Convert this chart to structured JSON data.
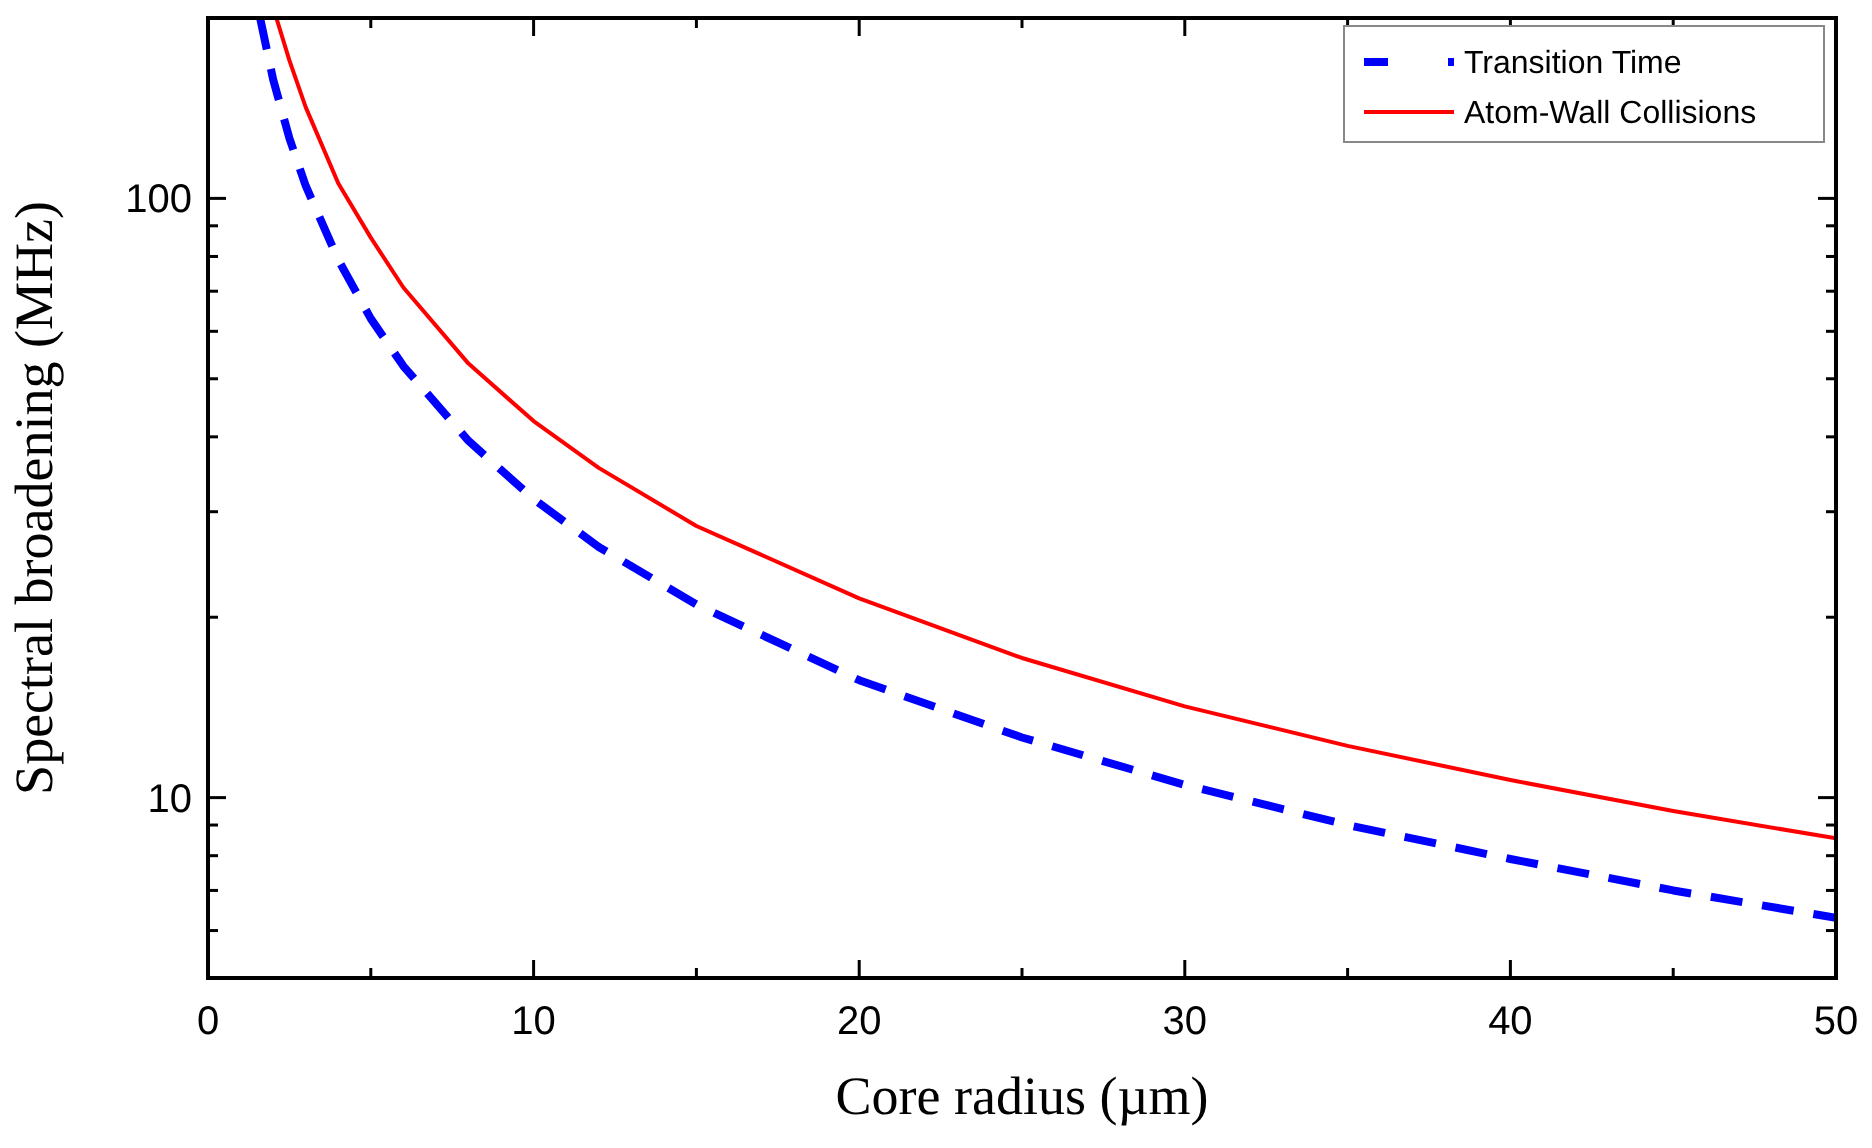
{
  "chart_data": {
    "type": "line",
    "xlabel": "Core radius (µm)",
    "ylabel": "Spectral broadening (MHz)",
    "log": "y",
    "xlim": [
      0,
      50
    ],
    "xticks": [
      0,
      {
        "value": 5,
        "label": null
      },
      10,
      {
        "value": 15,
        "label": null
      },
      20,
      {
        "value": 25,
        "label": null
      },
      30,
      {
        "value": 35,
        "label": null
      },
      40,
      {
        "value": 45,
        "label": null
      },
      50
    ],
    "ylim": [
      5,
      200
    ],
    "yticks": [
      {
        "value": 6,
        "label": null
      },
      {
        "value": 7,
        "label": null
      },
      {
        "value": 8,
        "label": null
      },
      {
        "value": 9,
        "label": null
      },
      10,
      {
        "value": 20,
        "label": null
      },
      {
        "value": 30,
        "label": null
      },
      {
        "value": 40,
        "label": null
      },
      {
        "value": 50,
        "label": null
      },
      {
        "value": 60,
        "label": null
      },
      {
        "value": 70,
        "label": null
      },
      {
        "value": 80,
        "label": null
      },
      {
        "value": 90,
        "label": null
      },
      100
    ],
    "grid": false,
    "legend": "top right",
    "series": [
      {
        "name": "Transition Time",
        "color": "#0000ff",
        "line_style": "dashed",
        "x": [
          1.6,
          2,
          2.5,
          3,
          4,
          5,
          6,
          8,
          10,
          12,
          15,
          20,
          25,
          30,
          35,
          40,
          45,
          50
        ],
        "values": [
          200,
          158,
          126,
          105,
          79,
          63,
          52.5,
          39.4,
          31.5,
          26.2,
          21,
          15.7,
          12.6,
          10.5,
          9,
          7.9,
          7,
          6.3
        ]
      },
      {
        "name": "Atom-Wall Collisions",
        "color": "#ff0000",
        "line_style": "solid",
        "x": [
          2.1,
          2.5,
          3,
          4,
          5,
          6,
          8,
          10,
          12,
          15,
          20,
          25,
          30,
          35,
          40,
          45,
          50
        ],
        "values": [
          200,
          170,
          142,
          106,
          86,
          71,
          53,
          42.5,
          35.5,
          28.4,
          21.5,
          17.1,
          14.2,
          12.2,
          10.7,
          9.5,
          8.55
        ]
      }
    ]
  }
}
